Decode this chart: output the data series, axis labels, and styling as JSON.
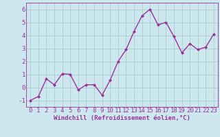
{
  "x": [
    0,
    1,
    2,
    3,
    4,
    5,
    6,
    7,
    8,
    9,
    10,
    11,
    12,
    13,
    14,
    15,
    16,
    17,
    18,
    19,
    20,
    21,
    22,
    23
  ],
  "y": [
    -1.0,
    -0.7,
    0.65,
    0.2,
    1.05,
    1.0,
    -0.2,
    0.2,
    0.2,
    -0.6,
    0.55,
    2.0,
    2.9,
    4.3,
    5.5,
    6.0,
    4.8,
    5.0,
    3.9,
    2.65,
    3.35,
    2.9,
    3.1,
    4.1
  ],
  "line_color": "#993399",
  "marker": "D",
  "markersize": 2,
  "linewidth": 1.0,
  "bg_color": "#cce8ee",
  "grid_color": "#aacccc",
  "xlabel": "Windchill (Refroidissement éolien,°C)",
  "xlim": [
    -0.5,
    23.5
  ],
  "ylim": [
    -1.5,
    6.5
  ],
  "yticks": [
    -1,
    0,
    1,
    2,
    3,
    4,
    5,
    6
  ],
  "xticks": [
    0,
    1,
    2,
    3,
    4,
    5,
    6,
    7,
    8,
    9,
    10,
    11,
    12,
    13,
    14,
    15,
    16,
    17,
    18,
    19,
    20,
    21,
    22,
    23
  ],
  "xlabel_fontsize": 6.5,
  "tick_fontsize": 6.5,
  "axis_color": "#993399"
}
